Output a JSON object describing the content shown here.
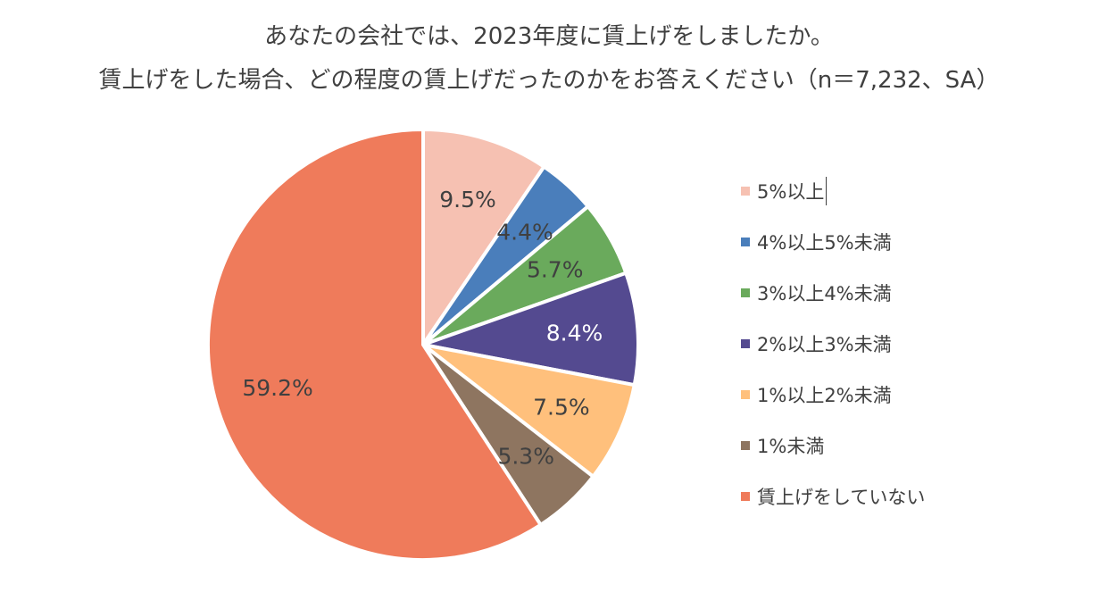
{
  "chart_data": {
    "type": "pie",
    "title": "あなたの会社では、2023年度に賃上げをしましたか。",
    "subtitle": "賃上げをした場合、どの程度の賃上げだったのかをお答えください（n＝7,232、SA）",
    "legend_position": "right",
    "categories": [
      "5%以上",
      "4%以上5%未満",
      "3%以上4%未満",
      "2%以上3%未満",
      "1%以上2%未満",
      "1%未満",
      "賃上げをしていない"
    ],
    "values": [
      9.5,
      4.4,
      5.7,
      8.4,
      7.5,
      5.3,
      59.2
    ],
    "data_labels": [
      "9.5%",
      "4.4%",
      "5.7%",
      "8.4%",
      "7.5%",
      "5.3%",
      "59.2%"
    ],
    "colors": [
      "#F6C1B2",
      "#4A7EBB",
      "#6AAA5C",
      "#544A90",
      "#FFC07C",
      "#8E7560",
      "#EF7B5B"
    ],
    "label_colors": [
      "#404040",
      "#404040",
      "#404040",
      "#ffffff",
      "#404040",
      "#404040",
      "#404040"
    ]
  }
}
